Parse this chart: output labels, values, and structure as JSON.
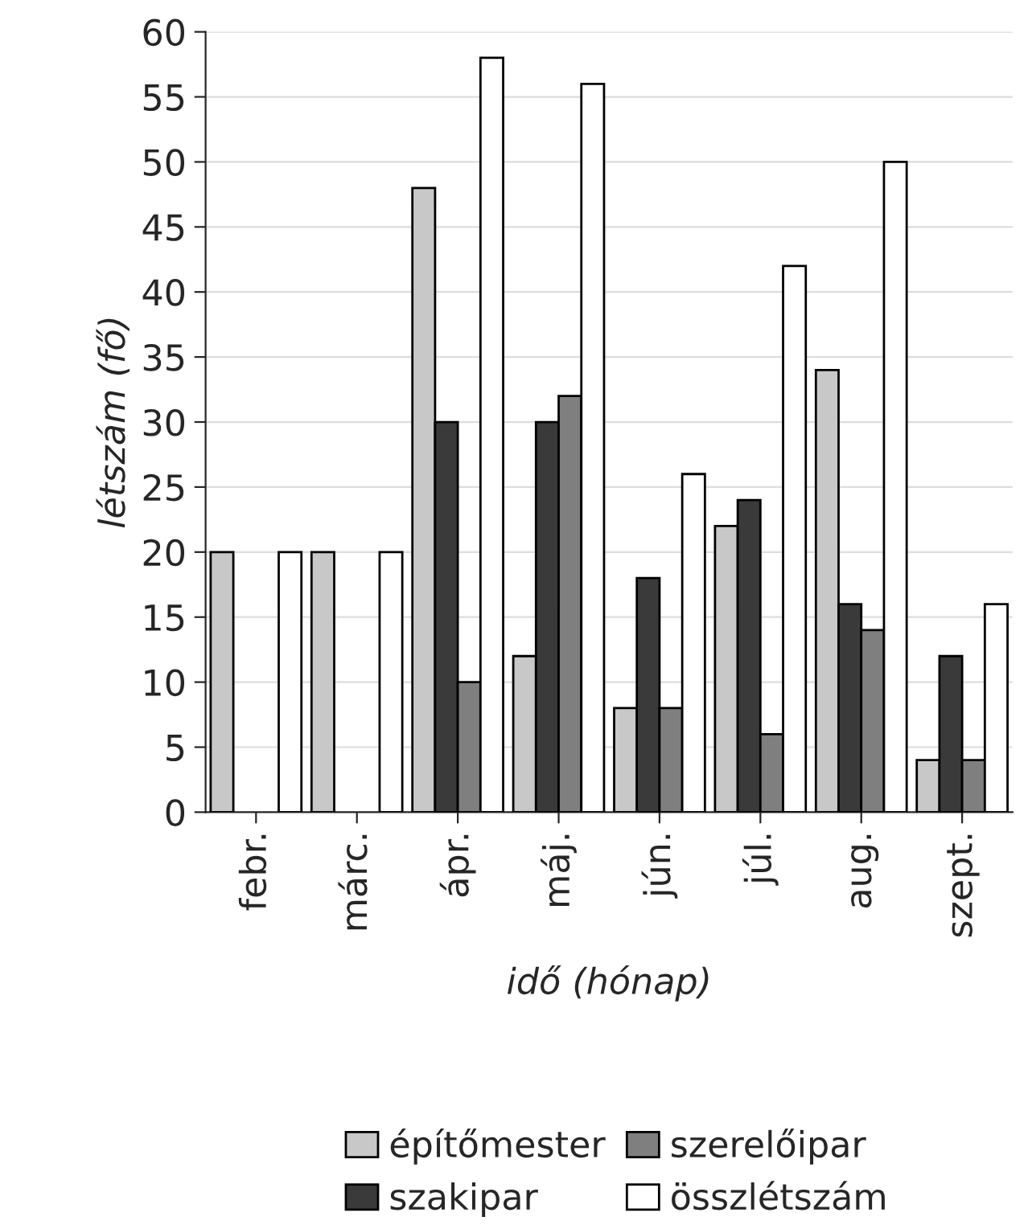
{
  "chart_data": {
    "type": "bar",
    "xlabel": "idő (hónap)",
    "ylabel": "létszám (fő)",
    "categories": [
      "febr.",
      "márc.",
      "ápr.",
      "máj.",
      "jún.",
      "júl.",
      "aug.",
      "szept."
    ],
    "series": [
      {
        "name": "építőmester",
        "color": "#c8c8c8",
        "values": [
          20,
          20,
          48,
          12,
          8,
          22,
          34,
          4
        ]
      },
      {
        "name": "szakipar",
        "color": "#3a3a3a",
        "values": [
          null,
          null,
          30,
          30,
          18,
          24,
          16,
          12
        ]
      },
      {
        "name": "szerelőipar",
        "color": "#7f7f7f",
        "values": [
          null,
          null,
          10,
          32,
          8,
          6,
          14,
          4
        ]
      },
      {
        "name": "összlétszám",
        "color": "#ffffff",
        "values": [
          20,
          20,
          58,
          56,
          26,
          42,
          50,
          16
        ]
      }
    ],
    "ylim": [
      0,
      60
    ],
    "yticks": [
      0,
      5,
      10,
      15,
      20,
      25,
      30,
      35,
      40,
      45,
      50,
      55,
      60
    ],
    "grid": "y",
    "legend": "bottom"
  }
}
